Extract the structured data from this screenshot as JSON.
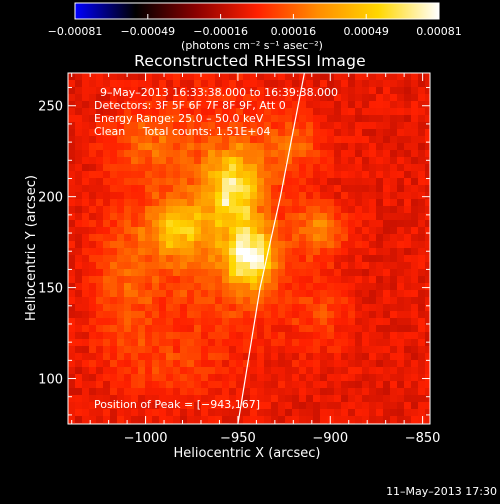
{
  "colorbar": {
    "tick_labels": [
      "−0.00081",
      "−0.00049",
      "−0.00016",
      "0.00016",
      "0.00049",
      "0.00081"
    ],
    "unit_label": "(photons cm⁻² s⁻¹ asec⁻²)",
    "range": [
      -0.00081,
      0.00081
    ],
    "colormap": [
      "#0000ff",
      "#000000",
      "#8b0000",
      "#ff2000",
      "#ff8c00",
      "#ffd700",
      "#ffffff"
    ]
  },
  "title": "Reconstructed RHESSI Image",
  "annotations": {
    "time_range": "9–May–2013 16:33:38.000 to 16:39:38.000",
    "detectors": "Detectors: 3F 5F 6F 7F 8F 9F, Att 0",
    "energy_range": "Energy Range: 25.0 – 50.0 keV",
    "method_counts": "Clean     Total counts: 1.51E+04",
    "peak_position": "Position of Peak = [−943,167]"
  },
  "footer": {
    "timestamp": "11–May–2013 17:30"
  },
  "chart_data": {
    "type": "heatmap",
    "title": "Reconstructed RHESSI Image",
    "xlabel": "Heliocentric X (arcsec)",
    "ylabel": "Heliocentric Y (arcsec)",
    "xlim": [
      -1042,
      -846
    ],
    "ylim": [
      75,
      268
    ],
    "x_ticks": [
      -1000,
      -950,
      -900,
      -850
    ],
    "x_tick_labels": [
      "−1000",
      "−950",
      "−900",
      "−850"
    ],
    "y_ticks": [
      100,
      150,
      200,
      250
    ],
    "y_tick_labels": [
      "100",
      "150",
      "200",
      "250"
    ],
    "peak": [
      -943,
      167
    ],
    "limb_line": [
      [
        -950,
        75
      ],
      [
        -938,
        150
      ],
      [
        -927,
        200
      ],
      [
        -914,
        268
      ]
    ],
    "sources": [
      {
        "x": -943,
        "y": 167,
        "sigma_x": 8,
        "sigma_y": 11,
        "amp": 0.00081
      },
      {
        "x": -952,
        "y": 205,
        "sigma_x": 9,
        "sigma_y": 14,
        "amp": 0.00055
      },
      {
        "x": -983,
        "y": 182,
        "sigma_x": 10,
        "sigma_y": 10,
        "amp": 0.00044
      },
      {
        "x": -960,
        "y": 185,
        "sigma_x": 26,
        "sigma_y": 42,
        "amp": 0.00031
      },
      {
        "x": -905,
        "y": 182,
        "sigma_x": 9,
        "sigma_y": 9,
        "amp": 0.00033
      },
      {
        "x": -1012,
        "y": 150,
        "sigma_x": 12,
        "sigma_y": 30,
        "amp": 0.00022
      },
      {
        "x": -920,
        "y": 230,
        "sigma_x": 12,
        "sigma_y": 10,
        "amp": 0.0002
      },
      {
        "x": -1000,
        "y": 230,
        "sigma_x": 14,
        "sigma_y": 12,
        "amp": 0.00022
      },
      {
        "x": -985,
        "y": 105,
        "sigma_x": 16,
        "sigma_y": 12,
        "amp": 0.00012
      },
      {
        "x": -905,
        "y": 135,
        "sigma_x": 12,
        "sigma_y": 16,
        "amp": 0.00014
      }
    ]
  }
}
